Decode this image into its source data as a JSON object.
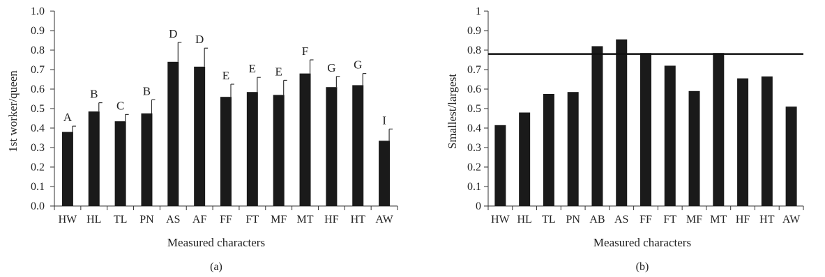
{
  "chart_data": [
    {
      "type": "bar",
      "panel_label": "(a)",
      "xlabel": "Measured characters",
      "ylabel": "1st worker/queen",
      "ylim": [
        0,
        1.0
      ],
      "yticks": [
        "0.0",
        "0.1",
        "0.2",
        "0.3",
        "0.4",
        "0.5",
        "0.6",
        "0.7",
        "0.8",
        "0.9",
        "1.0"
      ],
      "categories": [
        "HW",
        "HL",
        "TL",
        "PN",
        "AS",
        "AF",
        "FF",
        "FT",
        "MF",
        "MT",
        "HF",
        "HT",
        "AW"
      ],
      "values": [
        0.38,
        0.485,
        0.435,
        0.475,
        0.74,
        0.715,
        0.56,
        0.585,
        0.57,
        0.68,
        0.61,
        0.62,
        0.335
      ],
      "error": [
        0.03,
        0.045,
        0.035,
        0.07,
        0.1,
        0.095,
        0.065,
        0.075,
        0.075,
        0.07,
        0.055,
        0.06,
        0.06
      ],
      "significance_labels": [
        "A",
        "B",
        "C",
        "B",
        "D",
        "D",
        "E",
        "E",
        "E",
        "F",
        "G",
        "G",
        "I"
      ],
      "grid": false,
      "bar_color": "#1a1a1a"
    },
    {
      "type": "bar",
      "panel_label": "(b)",
      "xlabel": "Measured characters",
      "ylabel": "Smallest/largest",
      "ylim": [
        0,
        1
      ],
      "yticks": [
        "0",
        "0.1",
        "0.2",
        "0.3",
        "0.4",
        "0.5",
        "0.6",
        "0.7",
        "0.8",
        "0.9",
        "1"
      ],
      "categories": [
        "HW",
        "HL",
        "TL",
        "PN",
        "AB",
        "AS",
        "FF",
        "FT",
        "MF",
        "MT",
        "HF",
        "HT",
        "AW"
      ],
      "values": [
        0.415,
        0.48,
        0.575,
        0.585,
        0.82,
        0.855,
        0.785,
        0.72,
        0.59,
        0.785,
        0.655,
        0.665,
        0.51
      ],
      "reference_line": 0.78,
      "grid": false,
      "bar_color": "#1a1a1a"
    }
  ]
}
